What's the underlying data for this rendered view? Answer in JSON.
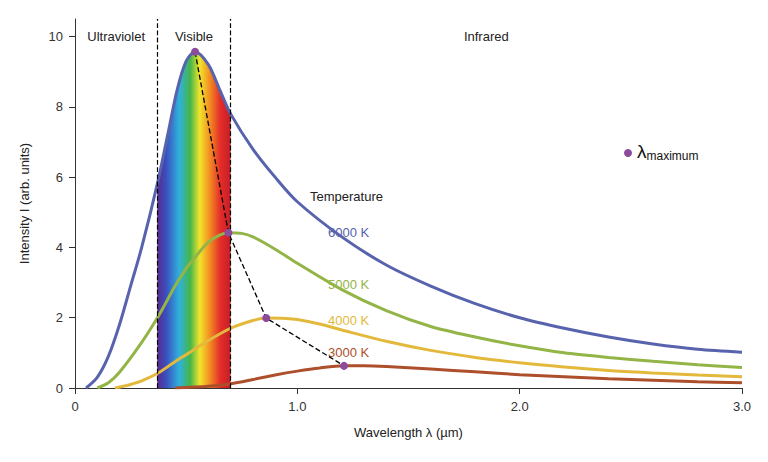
{
  "chart_data": {
    "type": "line",
    "x_label": "Wavelength λ (µm)",
    "y_label": "Intensity I (arb. units)",
    "xlim": [
      0,
      3
    ],
    "xticks": [
      0,
      {
        "value": 1,
        "label": "1.0"
      },
      {
        "value": 2,
        "label": "2.0"
      },
      {
        "value": 3,
        "label": "3.0"
      }
    ],
    "ylim": [
      0,
      10.5
    ],
    "yticks": [
      0,
      2,
      4,
      6,
      8,
      10
    ],
    "grid": false,
    "annotations": [
      "Temperature"
    ],
    "regions": [
      {
        "label": "Ultraviolet",
        "xlim": [
          0,
          0.37
        ]
      },
      {
        "label": "Visible",
        "xlim": [
          0.37,
          0.7
        ]
      },
      {
        "label": "Infrared",
        "xlim": [
          0.7,
          3
        ]
      }
    ],
    "series": [
      {
        "name": "6000 K",
        "color": "#5863ad",
        "x": [
          0.05,
          0.1,
          0.15,
          0.2,
          0.25,
          0.3,
          0.37,
          0.42,
          0.46,
          0.5,
          0.54,
          0.6,
          0.65,
          0.7,
          0.8,
          0.9,
          1.0,
          1.2,
          1.4,
          1.6,
          1.8,
          2.0,
          2.2,
          2.4,
          2.6,
          2.8,
          3.0
        ],
        "values": [
          0,
          0.3,
          0.9,
          1.8,
          2.9,
          4.0,
          5.8,
          7.3,
          8.5,
          9.3,
          9.57,
          9.2,
          8.5,
          7.8,
          6.8,
          6.0,
          5.3,
          4.3,
          3.5,
          2.9,
          2.4,
          2.0,
          1.7,
          1.45,
          1.25,
          1.1,
          1.02
        ]
      },
      {
        "name": "5000 K",
        "color": "#93b446",
        "x": [
          0.1,
          0.15,
          0.2,
          0.3,
          0.38,
          0.45,
          0.5,
          0.55,
          0.6,
          0.65,
          0.69,
          0.75,
          0.8,
          0.9,
          1.0,
          1.2,
          1.4,
          1.6,
          1.8,
          2.0,
          2.2,
          2.4,
          2.6,
          2.8,
          3.0
        ],
        "values": [
          0,
          0.15,
          0.45,
          1.3,
          2.1,
          2.9,
          3.4,
          3.8,
          4.15,
          4.35,
          4.42,
          4.4,
          4.3,
          3.95,
          3.55,
          2.8,
          2.2,
          1.75,
          1.45,
          1.2,
          1.0,
          0.87,
          0.76,
          0.66,
          0.58
        ]
      },
      {
        "name": "4000 K",
        "color": "#e3b93c",
        "x": [
          0.18,
          0.25,
          0.3,
          0.38,
          0.45,
          0.5,
          0.6,
          0.7,
          0.8,
          0.86,
          0.95,
          1.0,
          1.1,
          1.2,
          1.4,
          1.6,
          1.8,
          2.0,
          2.2,
          2.4,
          2.6,
          2.8,
          3.0
        ],
        "values": [
          0,
          0.1,
          0.2,
          0.45,
          0.75,
          0.95,
          1.35,
          1.7,
          1.92,
          1.99,
          1.98,
          1.95,
          1.82,
          1.65,
          1.33,
          1.07,
          0.87,
          0.72,
          0.6,
          0.5,
          0.43,
          0.37,
          0.32
        ]
      },
      {
        "name": "3000 K",
        "color": "#ae4f2c",
        "x": [
          0.45,
          0.6,
          0.7,
          0.8,
          0.9,
          1.0,
          1.1,
          1.21,
          1.3,
          1.4,
          1.6,
          1.8,
          2.0,
          2.2,
          2.4,
          2.6,
          2.8,
          3.0
        ],
        "values": [
          0,
          0.05,
          0.12,
          0.24,
          0.37,
          0.48,
          0.57,
          0.63,
          0.63,
          0.61,
          0.54,
          0.46,
          0.38,
          0.32,
          0.26,
          0.22,
          0.18,
          0.15
        ]
      }
    ],
    "peaks": {
      "label": "λ",
      "label_subscript": "maximum",
      "color": "#8d4b9b",
      "marker": "circle",
      "line_style": "dashed",
      "x": [
        0.54,
        0.69,
        0.86,
        1.21
      ],
      "values": [
        9.57,
        4.42,
        1.99,
        0.63
      ]
    }
  }
}
